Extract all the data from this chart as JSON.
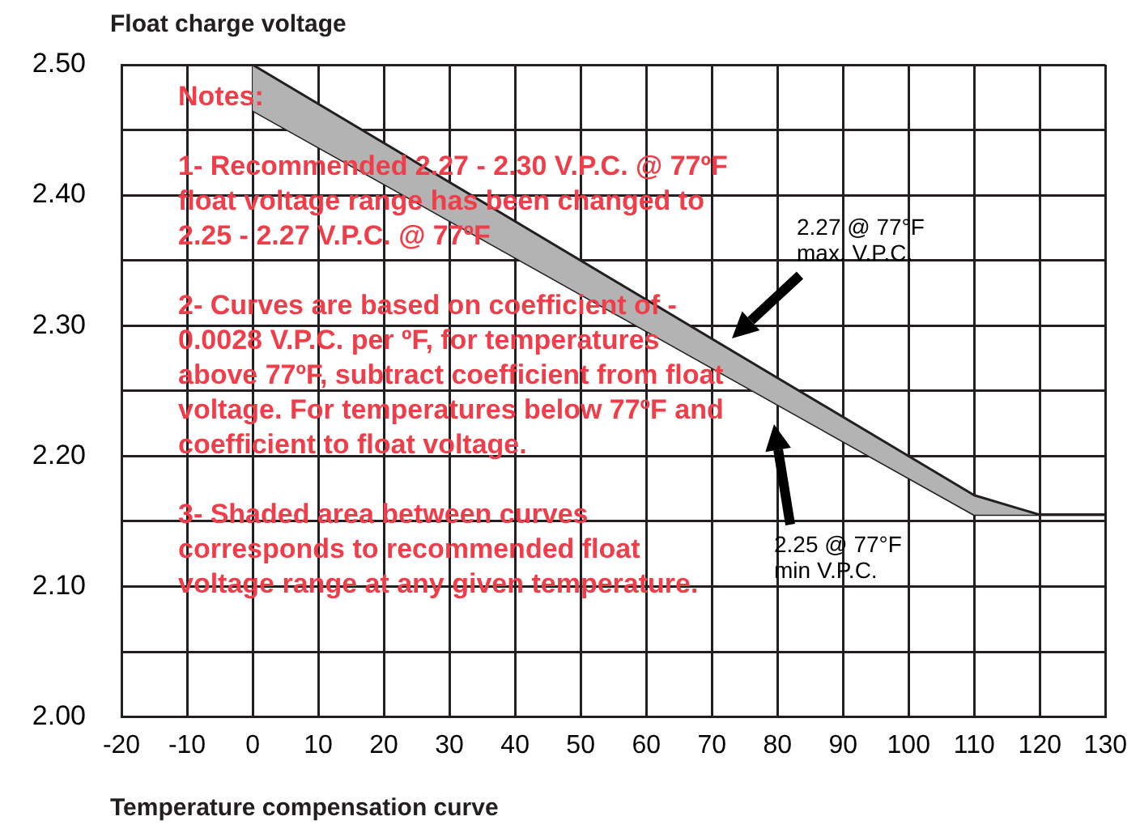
{
  "chart_data": {
    "type": "area",
    "xlabel": "Temperature compensation curve",
    "ylabel": "Float charge voltage",
    "xlim": [
      -20,
      130
    ],
    "xticks": [
      -20,
      -10,
      0,
      10,
      20,
      30,
      40,
      50,
      60,
      70,
      80,
      90,
      100,
      110,
      120,
      130
    ],
    "ylim": [
      2.0,
      2.5
    ],
    "yticks": [
      {
        "value": 2.0,
        "label": "2.00"
      },
      {
        "value": 2.05,
        "label": null
      },
      {
        "value": 2.1,
        "label": "2.10"
      },
      {
        "value": 2.15,
        "label": null
      },
      {
        "value": 2.2,
        "label": "2.20"
      },
      {
        "value": 2.25,
        "label": null
      },
      {
        "value": 2.3,
        "label": "2.30"
      },
      {
        "value": 2.35,
        "label": null
      },
      {
        "value": 2.4,
        "label": "2.40"
      },
      {
        "value": 2.45,
        "label": null
      },
      {
        "value": 2.5,
        "label": "2.50"
      }
    ],
    "grid": true,
    "series": [
      {
        "type": "area",
        "color": "#b3b3b3",
        "x": [
          0,
          110,
          120,
          130
        ],
        "values": [
          2.5,
          2.17,
          2.155,
          2.155
        ]
      },
      {
        "type": "line",
        "color": "#231f20",
        "x": [
          0,
          110,
          130
        ],
        "values": [
          2.465,
          2.155,
          2.155
        ]
      }
    ],
    "annotations": [
      "Notes:",
      "1- Recommended 2.27 - 2.30 V.P.C. @ 77ºF float voltage range has been changed to 2.25 - 2.27 V.P.C. @ 77ºF",
      "2- Curves are based on coefficient of - 0.0028 V.P.C. per ºF, for temperatures above 77ºF, subtract coefficient from float voltage. For temperatures below 77ºF and coefficient to float voltage.",
      "3- Shaded area between curves corresponds to recommended float voltage range at any given temperature.",
      "2.27 @ 77°F max. V.P.C.",
      "2.25 @ 77°F min V.P.C."
    ]
  }
}
